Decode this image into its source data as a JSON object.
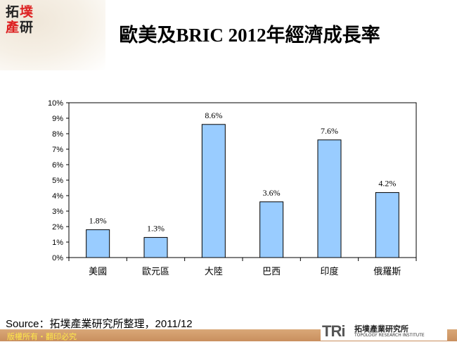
{
  "logo": {
    "chars": [
      "拓",
      "墣",
      "產",
      "研"
    ]
  },
  "chart_data": {
    "type": "bar",
    "title": "歐美及BRIC 2012年經濟成長率",
    "categories": [
      "美國",
      "歐元區",
      "大陸",
      "巴西",
      "印度",
      "俄羅斯"
    ],
    "values": [
      1.8,
      1.3,
      8.6,
      3.6,
      7.6,
      4.2
    ],
    "data_labels": [
      "1.8%",
      "1.3%",
      "8.6%",
      "3.6%",
      "7.6%",
      "4.2%"
    ],
    "y_ticks": [
      "0%",
      "1%",
      "2%",
      "3%",
      "4%",
      "5%",
      "6%",
      "7%",
      "8%",
      "9%",
      "10%"
    ],
    "ylim": [
      0,
      10
    ],
    "grid": false,
    "bar_color": "#99ccff"
  },
  "source": "Source：拓墣產業研究所整理，2011/12",
  "footer": {
    "copyright": "版權所有・翻印必究",
    "brand_en": "TRi",
    "brand_cn": "拓墣產業研究所",
    "brand_sub": "TOPOLOGY RESEARCH INSTITUTE"
  }
}
